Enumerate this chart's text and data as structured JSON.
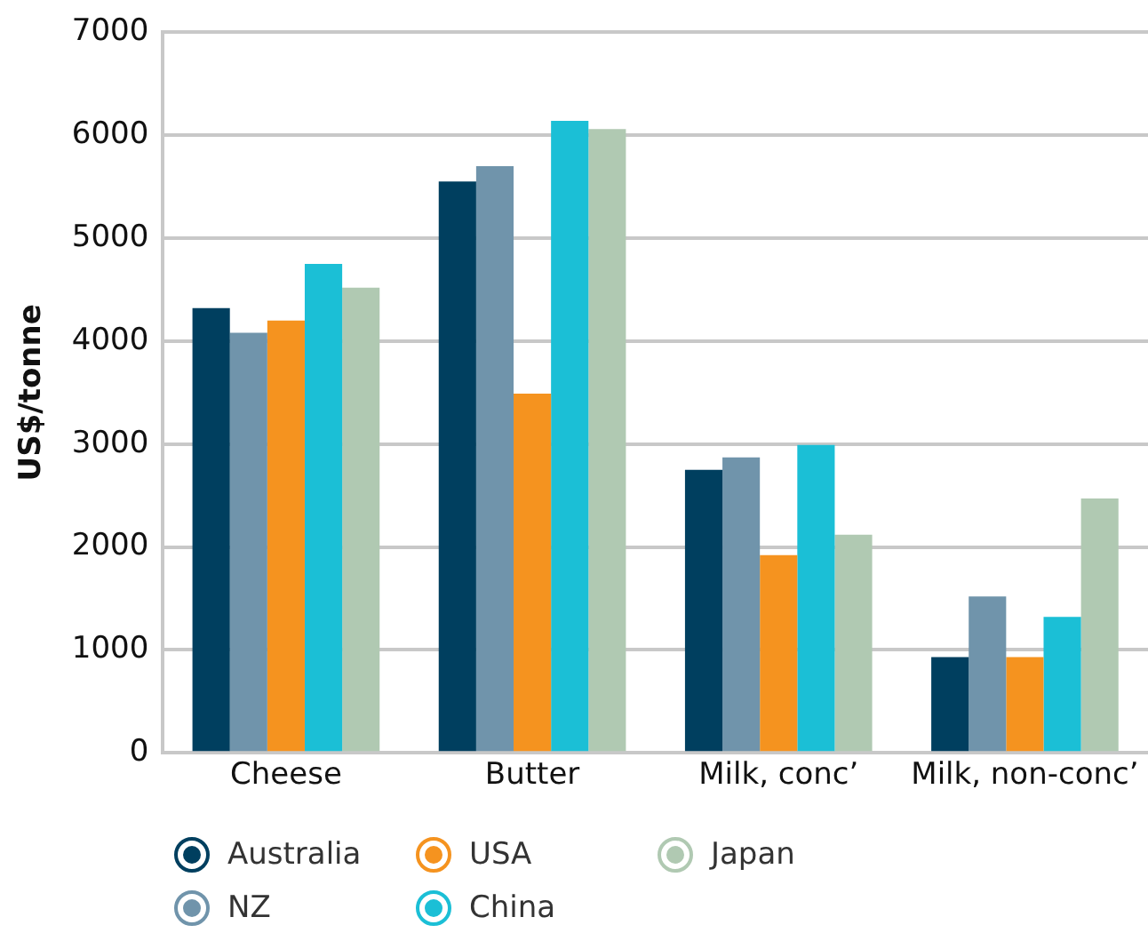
{
  "chart_data": {
    "type": "bar",
    "ylabel": "US$/tonne",
    "categories": [
      "Cheese",
      "Butter",
      "Milk, conc’",
      "Milk, non-conc’"
    ],
    "series": [
      {
        "name": "Australia",
        "color": "#003f5f",
        "values": [
          4320,
          5550,
          2750,
          930
        ]
      },
      {
        "name": "NZ",
        "color": "#7094ab",
        "values": [
          4080,
          5700,
          2870,
          1520
        ]
      },
      {
        "name": "USA",
        "color": "#f5931f",
        "values": [
          4200,
          3490,
          1920,
          930
        ]
      },
      {
        "name": "China",
        "color": "#1bbfd6",
        "values": [
          4750,
          6140,
          2990,
          1320
        ]
      },
      {
        "name": "Japan",
        "color": "#b0c9b2",
        "values": [
          4520,
          6060,
          2120,
          2470
        ]
      }
    ],
    "ylim": [
      0,
      7000
    ],
    "yticks": [
      0,
      1000,
      2000,
      3000,
      4000,
      5000,
      6000,
      7000
    ],
    "grid": "y",
    "legend": "bottom left"
  }
}
